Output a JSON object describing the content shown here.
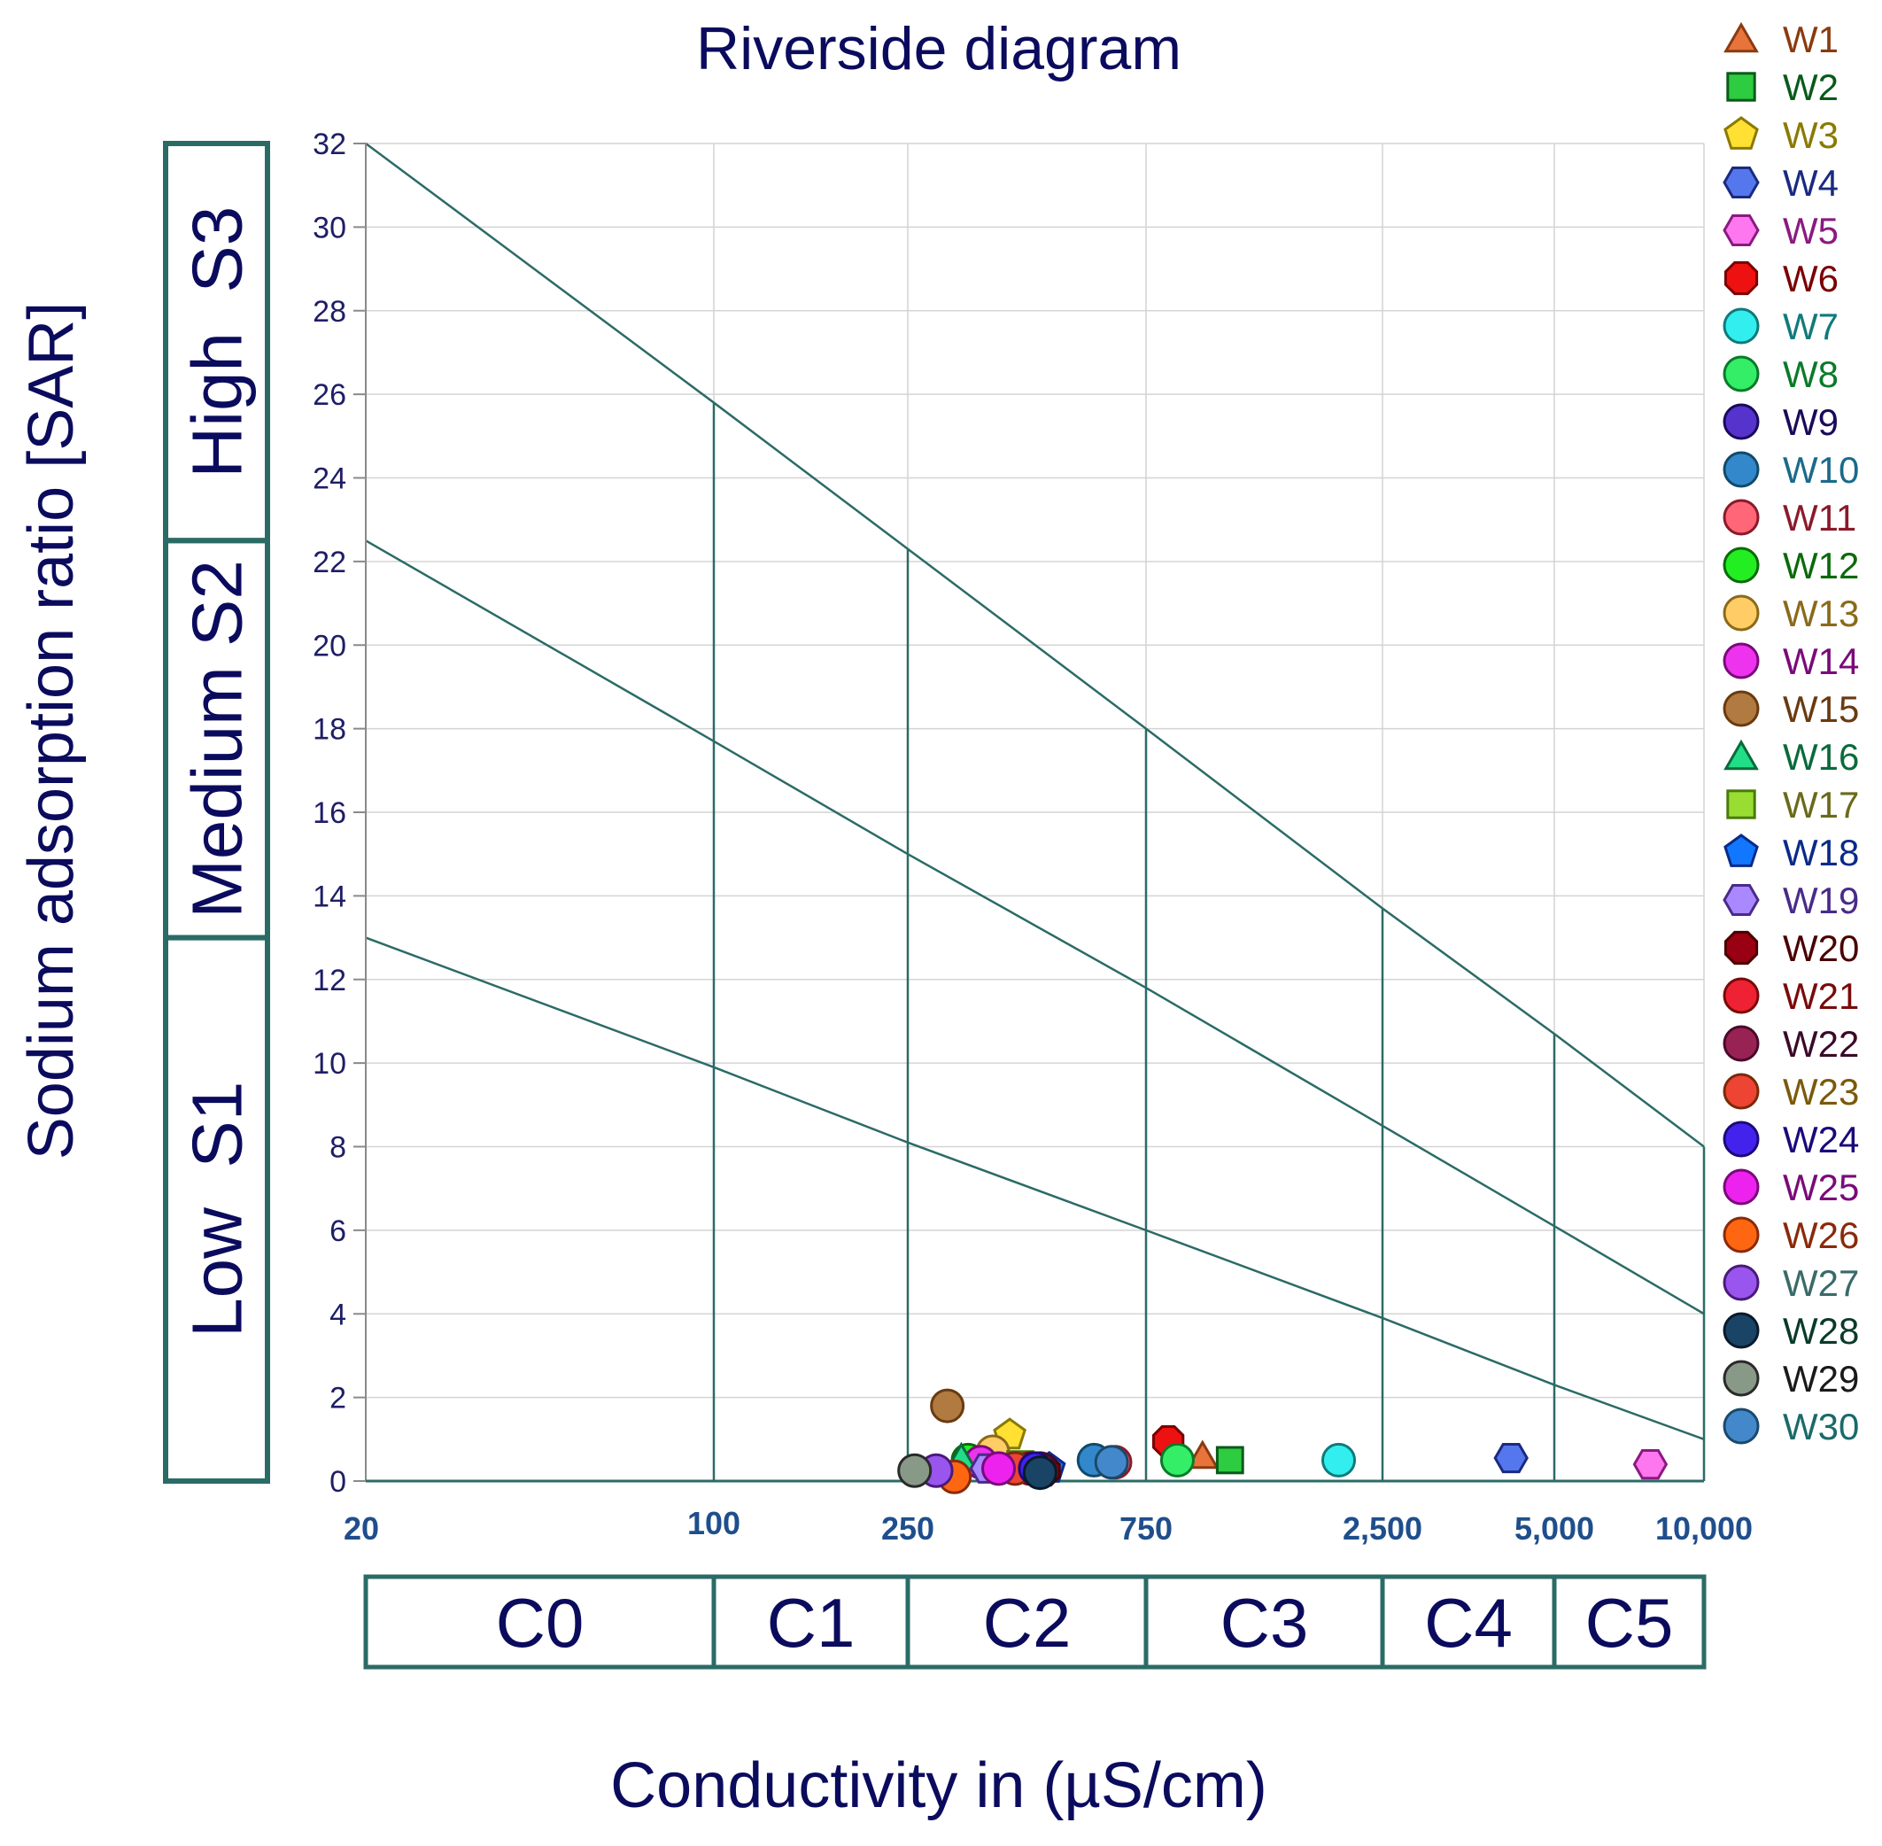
{
  "chart_data": {
    "type": "scatter",
    "title": "Riverside diagram",
    "xlabel": "Conductivity in (µS/cm)",
    "ylabel": "Sodium adsorption ratio [SAR]",
    "x_scale": "piecewise",
    "x_ticks": [
      20,
      100,
      250,
      750,
      2500,
      5000,
      10000
    ],
    "x_tick_labels": [
      "20",
      "100",
      "250",
      "750",
      "2,500",
      "5,000",
      "10,000"
    ],
    "y_ticks": [
      0,
      2,
      4,
      6,
      8,
      10,
      12,
      14,
      16,
      18,
      20,
      22,
      24,
      26,
      28,
      30,
      32
    ],
    "ylim": [
      0,
      32
    ],
    "grid": true,
    "sodium_hazard_bands": [
      {
        "label": "Low  S1",
        "y0": 0,
        "y1": 13
      },
      {
        "label": "Medium S2",
        "y0": 13,
        "y1": 22.5
      },
      {
        "label": "High  S3",
        "y0": 22.5,
        "y1": 32
      }
    ],
    "salinity_classes": [
      {
        "label": "C0",
        "x0": 20,
        "x1": 100
      },
      {
        "label": "C1",
        "x0": 100,
        "x1": 250
      },
      {
        "label": "C2",
        "x0": 250,
        "x1": 750
      },
      {
        "label": "C3",
        "x0": 750,
        "x1": 2500
      },
      {
        "label": "C4",
        "x0": 2500,
        "x1": 5000
      },
      {
        "label": "C5",
        "x0": 5000,
        "x1": 10000
      }
    ],
    "boundary_lines": [
      {
        "points": [
          [
            20,
            13
          ],
          [
            100,
            9.9
          ],
          [
            250,
            8.1
          ],
          [
            750,
            6.0
          ],
          [
            2500,
            3.9
          ],
          [
            5000,
            2.3
          ],
          [
            10000,
            1.0
          ]
        ]
      },
      {
        "points": [
          [
            20,
            22.5
          ],
          [
            100,
            17.7
          ],
          [
            250,
            15.0
          ],
          [
            750,
            11.8
          ],
          [
            2500,
            8.5
          ],
          [
            5000,
            6.1
          ],
          [
            10000,
            4.0
          ]
        ]
      },
      {
        "points": [
          [
            20,
            32
          ],
          [
            100,
            25.8
          ],
          [
            250,
            22.3
          ],
          [
            750,
            18.0
          ],
          [
            2500,
            13.7
          ],
          [
            5000,
            10.7
          ],
          [
            10000,
            8.0
          ]
        ]
      }
    ],
    "series": [
      {
        "name": "W1",
        "marker": "triangle",
        "color": "#e8743b",
        "edge": "#8b3a10",
        "x": 1000,
        "y": 0.6
      },
      {
        "name": "W2",
        "marker": "square",
        "color": "#2ecc40",
        "edge": "#0a5a1a",
        "x": 1150,
        "y": 0.5
      },
      {
        "name": "W3",
        "marker": "pentagon",
        "color": "#ffe033",
        "edge": "#8a7a00",
        "x": 400,
        "y": 1.1
      },
      {
        "name": "W4",
        "marker": "hexagon",
        "color": "#5577ee",
        "edge": "#1a2a80",
        "x": 4200,
        "y": 0.55
      },
      {
        "name": "W5",
        "marker": "hexagon",
        "color": "#ff77ee",
        "edge": "#8a1a80",
        "x": 7800,
        "y": 0.4
      },
      {
        "name": "W6",
        "marker": "octagon",
        "color": "#ee1111",
        "edge": "#7a0000",
        "x": 840,
        "y": 0.95
      },
      {
        "name": "W7",
        "marker": "circle",
        "color": "#33eeee",
        "edge": "#107a7a",
        "x": 2000,
        "y": 0.5
      },
      {
        "name": "W8",
        "marker": "circle",
        "color": "#33ee66",
        "edge": "#0a7a2a",
        "x": 880,
        "y": 0.5
      },
      {
        "name": "W9",
        "marker": "circle",
        "color": "#5533cc",
        "edge": "#1a0a5a",
        "x": 440,
        "y": 0.3
      },
      {
        "name": "W10",
        "marker": "circle",
        "color": "#3388cc",
        "edge": "#104a6a",
        "x": 590,
        "y": 0.5
      },
      {
        "name": "W11",
        "marker": "circle",
        "color": "#ff6677",
        "edge": "#8a1a2a",
        "x": 650,
        "y": 0.45
      },
      {
        "name": "W12",
        "marker": "circle",
        "color": "#22ee22",
        "edge": "#0a6a0a",
        "x": 330,
        "y": 0.5
      },
      {
        "name": "W13",
        "marker": "circle",
        "color": "#ffcc66",
        "edge": "#8a6a1a",
        "x": 370,
        "y": 0.7
      },
      {
        "name": "W14",
        "marker": "circle",
        "color": "#ee33ee",
        "edge": "#7a0a7a",
        "x": 350,
        "y": 0.45
      },
      {
        "name": "W15",
        "marker": "circle",
        "color": "#b07a40",
        "edge": "#6a3a10",
        "x": 300,
        "y": 1.8
      },
      {
        "name": "W16",
        "marker": "triangle",
        "color": "#22dd88",
        "edge": "#0a6a3a",
        "x": 320,
        "y": 0.55
      },
      {
        "name": "W17",
        "marker": "square",
        "color": "#99dd33",
        "edge": "#4a7a0a",
        "x": 420,
        "y": 0.4
      },
      {
        "name": "W18",
        "marker": "pentagon",
        "color": "#1177ff",
        "edge": "#0a2a8a",
        "x": 480,
        "y": 0.3
      },
      {
        "name": "W19",
        "marker": "hexagon",
        "color": "#aa88ff",
        "edge": "#4a2a8a",
        "x": 360,
        "y": 0.3
      },
      {
        "name": "W20",
        "marker": "octagon",
        "color": "#990011",
        "edge": "#4a0000",
        "x": 470,
        "y": 0.25
      },
      {
        "name": "W21",
        "marker": "circle",
        "color": "#ee2233",
        "edge": "#7a0a0a",
        "x": 440,
        "y": 0.3
      },
      {
        "name": "W22",
        "marker": "circle",
        "color": "#992255",
        "edge": "#4a0a2a",
        "x": 460,
        "y": 0.3
      },
      {
        "name": "W23",
        "marker": "circle",
        "color": "#ee4433",
        "edge": "#7a2a0a",
        "x": 410,
        "y": 0.3
      },
      {
        "name": "W24",
        "marker": "circle",
        "color": "#4422ee",
        "edge": "#1a0a7a",
        "x": 450,
        "y": 0.3
      },
      {
        "name": "W25",
        "marker": "circle",
        "color": "#ee22ee",
        "edge": "#7a0a7a",
        "x": 380,
        "y": 0.3
      },
      {
        "name": "W26",
        "marker": "circle",
        "color": "#ff6611",
        "edge": "#8a2a0a",
        "x": 310,
        "y": 0.1
      },
      {
        "name": "W27",
        "marker": "circle",
        "color": "#9955ee",
        "edge": "#4a1a7a",
        "x": 285,
        "y": 0.25
      },
      {
        "name": "W28",
        "marker": "circle",
        "color": "#1a4466",
        "edge": "#0a1a2a",
        "x": 460,
        "y": 0.2
      },
      {
        "name": "W29",
        "marker": "circle",
        "color": "#889988",
        "edge": "#2a2a2a",
        "x": 258,
        "y": 0.25
      },
      {
        "name": "W30",
        "marker": "circle",
        "color": "#4488cc",
        "edge": "#1a4a6a",
        "x": 640,
        "y": 0.45
      }
    ],
    "legend_position": "right",
    "legend_text_colors": [
      "#8b3a10",
      "#0a5a1a",
      "#8a7a00",
      "#1a2a80",
      "#8a1a80",
      "#7a0000",
      "#107a7a",
      "#0a7a2a",
      "#1a0a5a",
      "#1a6a8a",
      "#8a1a2a",
      "#0a6a0a",
      "#8a6a1a",
      "#7a0a7a",
      "#6a3a10",
      "#0a6a3a",
      "#6a6a1a",
      "#0a2a8a",
      "#4a2a8a",
      "#4a0000",
      "#7a0a0a",
      "#3a0a2a",
      "#7a5a0a",
      "#1a0a7a",
      "#7a0a7a",
      "#8a2a0a",
      "#3a6a6a",
      "#0a3a2a",
      "#1a1a1a",
      "#1a6a6a"
    ]
  }
}
